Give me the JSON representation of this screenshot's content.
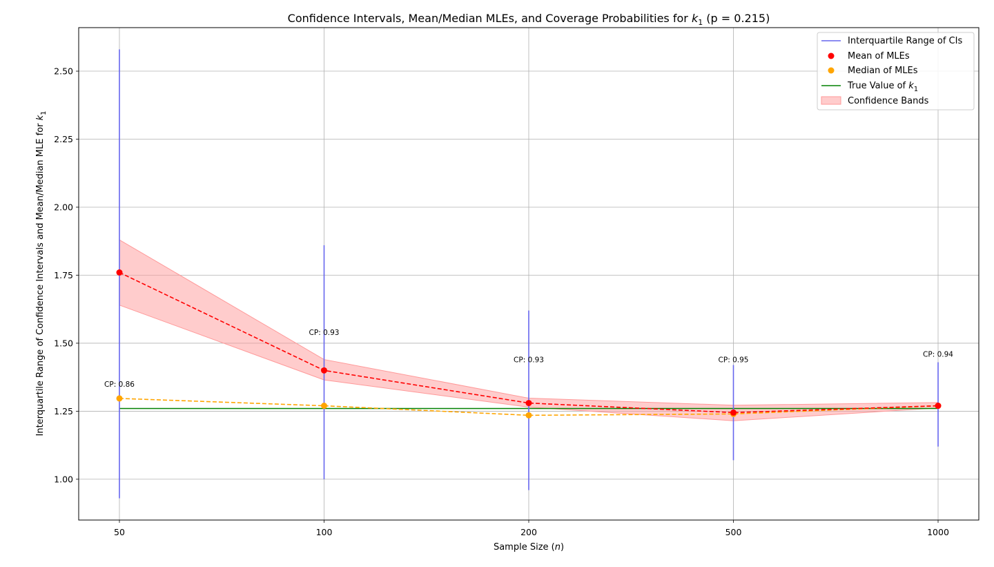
{
  "chart_data": {
    "type": "line",
    "title_prefix": "Confidence Intervals, Mean/Median MLEs, and Coverage Probabilities for ",
    "title_symbol": "k",
    "title_subscript": "1",
    "title_suffix": " (p = 0.215)",
    "xlabel_prefix": "Sample Size (",
    "xlabel_symbol": "n",
    "xlabel_suffix": ")",
    "ylabel_prefix": "Interquartile Range of Confidence Intervals and Mean/Median MLE for ",
    "ylabel_symbol": "k",
    "ylabel_subscript": "1",
    "categories": [
      "50",
      "100",
      "200",
      "500",
      "1000"
    ],
    "ylim": [
      0.85,
      2.66
    ],
    "yticks": [
      1.0,
      1.25,
      1.5,
      1.75,
      2.0,
      2.25,
      2.5
    ],
    "ytick_labels": [
      "1.00",
      "1.25",
      "1.50",
      "1.75",
      "2.00",
      "2.25",
      "2.50"
    ],
    "grid": true,
    "legend_position": "top-right",
    "series": [
      {
        "key": "iqr",
        "name": "Interquartile Range of CIs",
        "color": "#6666ee",
        "low": [
          0.93,
          1.0,
          0.96,
          1.07,
          1.12
        ],
        "high": [
          2.58,
          1.86,
          1.62,
          1.42,
          1.43
        ]
      },
      {
        "key": "mean",
        "name": "Mean of MLEs",
        "color": "#ff0000",
        "values": [
          1.76,
          1.4,
          1.28,
          1.245,
          1.27
        ]
      },
      {
        "key": "median",
        "name": "Median of MLEs",
        "color": "#ffa500",
        "values": [
          1.297,
          1.27,
          1.235,
          1.24,
          1.27
        ]
      },
      {
        "key": "true",
        "name_prefix": "True Value of ",
        "name_symbol": "k",
        "name_subscript": "1",
        "color": "#008000",
        "value": 1.26
      },
      {
        "key": "band",
        "name": "Confidence Bands",
        "color": "#ff9999",
        "low": [
          1.64,
          1.365,
          1.265,
          1.215,
          1.262
        ],
        "high": [
          1.88,
          1.44,
          1.298,
          1.272,
          1.282
        ]
      }
    ],
    "annotations": [
      {
        "text": "CP: 0.86",
        "y": 1.34
      },
      {
        "text": "CP: 0.93",
        "y": 1.53
      },
      {
        "text": "CP: 0.93",
        "y": 1.43
      },
      {
        "text": "CP: 0.95",
        "y": 1.43
      },
      {
        "text": "CP: 0.94",
        "y": 1.45
      }
    ]
  }
}
